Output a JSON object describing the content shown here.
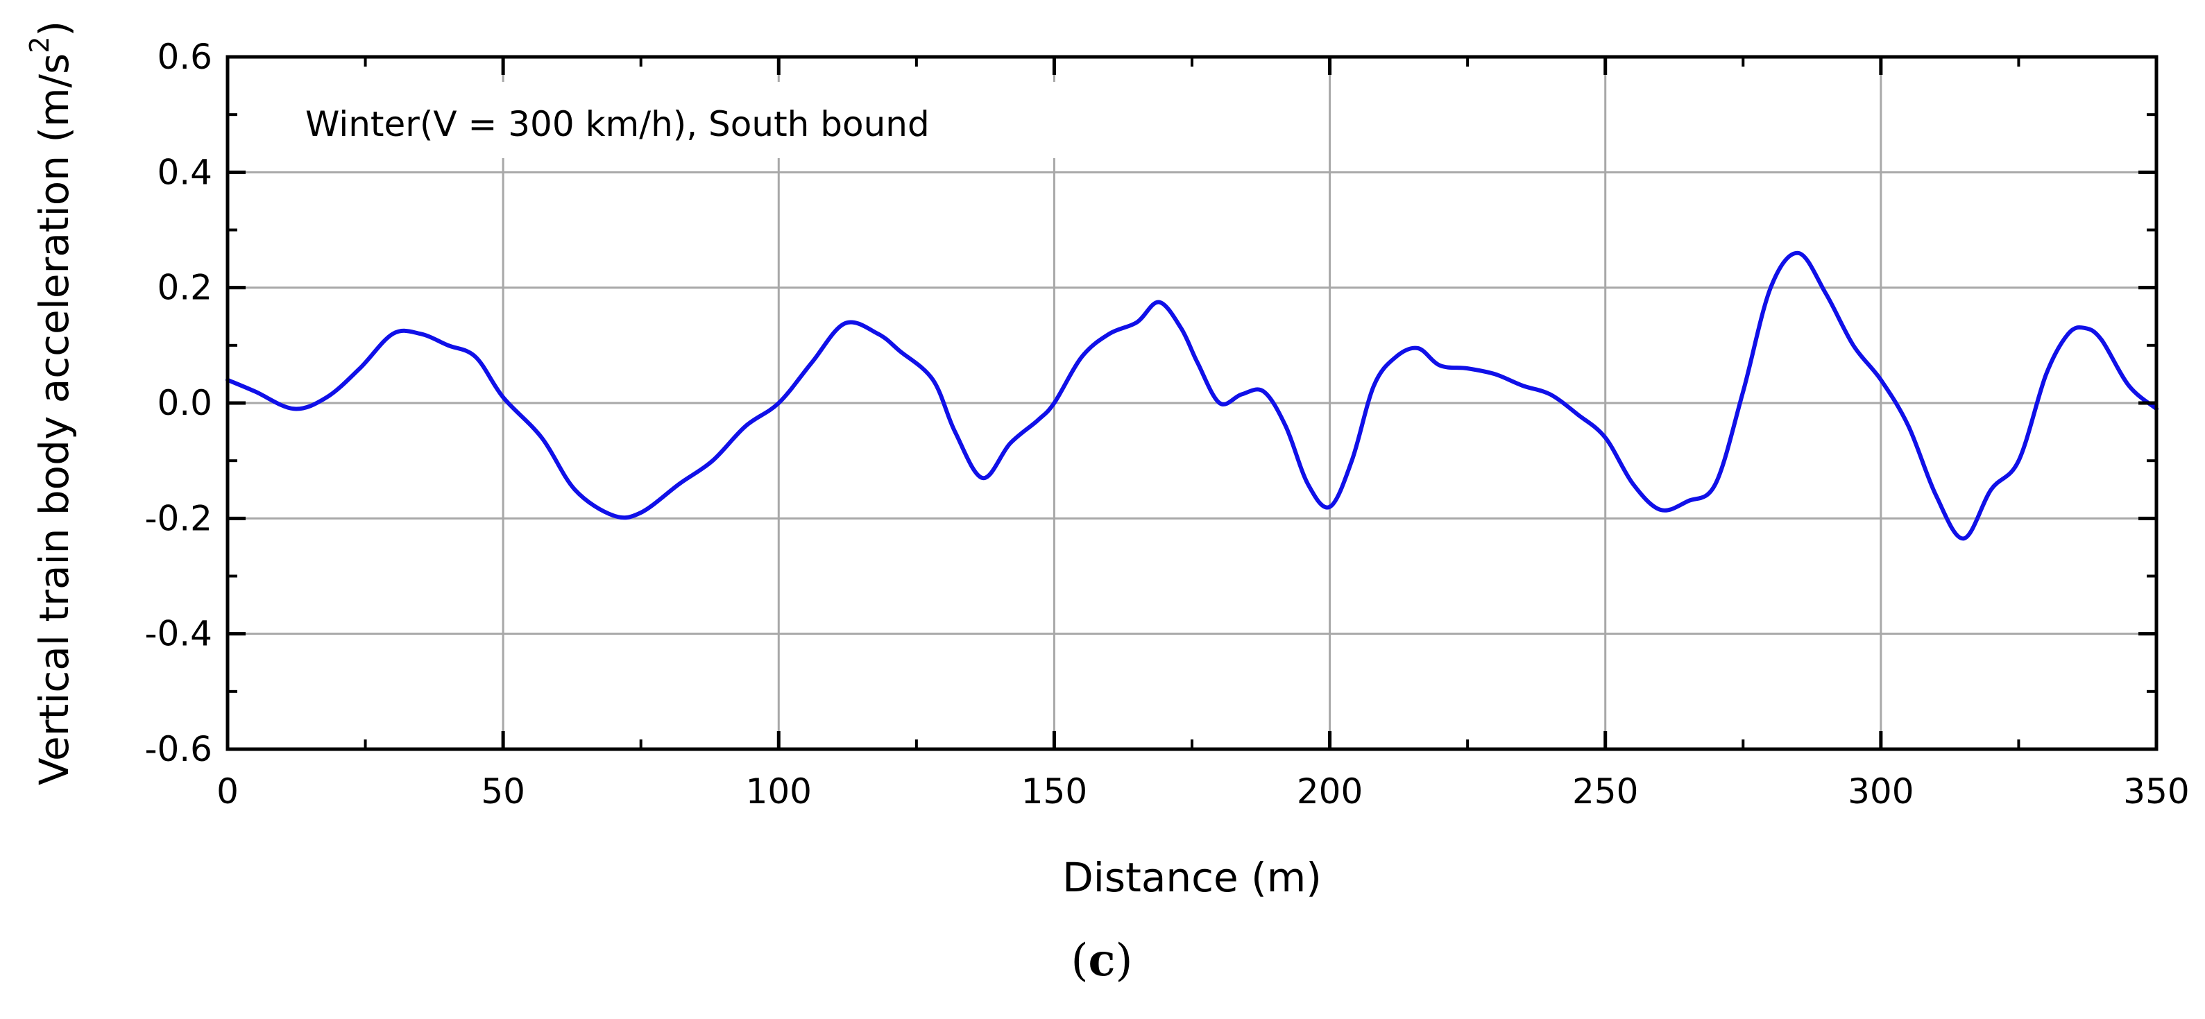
{
  "chart_data": {
    "type": "line",
    "title": "",
    "annotation": "Winter(V = 300 km/h), South bound",
    "caption_open": "(",
    "caption_letter": "c",
    "caption_close": ")",
    "xlabel": "Distance (m)",
    "ylabel": "Vertical train body acceleration (m/s",
    "ylabel_sup": "2",
    "ylabel_close": ")",
    "xlim": [
      0,
      350
    ],
    "ylim": [
      -0.6,
      0.6
    ],
    "x_ticks": [
      0,
      50,
      100,
      150,
      200,
      250,
      300,
      350
    ],
    "x_tick_labels": [
      "0",
      "50",
      "100",
      "150",
      "200",
      "250",
      "300",
      "350"
    ],
    "y_ticks": [
      -0.6,
      -0.4,
      -0.2,
      0.0,
      0.2,
      0.4,
      0.6
    ],
    "y_tick_labels": [
      "-0.6",
      "-0.4",
      "-0.2",
      "0.0",
      "0.2",
      "0.4",
      "0.6"
    ],
    "grid": true,
    "series": [
      {
        "name": "Vertical train body acceleration",
        "color": "#1010e8",
        "x": [
          0,
          5,
          12,
          18,
          24,
          30,
          35,
          40,
          45,
          50,
          57,
          63,
          70,
          75,
          82,
          88,
          94,
          100,
          106,
          112,
          118,
          122,
          128,
          132,
          137,
          142,
          147,
          150,
          155,
          160,
          165,
          169,
          173,
          176,
          180,
          184,
          188,
          192,
          196,
          200,
          204,
          208,
          212,
          216,
          220,
          225,
          230,
          235,
          240,
          245,
          250,
          255,
          260,
          265,
          270,
          275,
          280,
          285,
          290,
          295,
          300,
          305,
          310,
          315,
          320,
          325,
          330,
          334,
          337,
          340,
          345,
          350
        ],
        "y": [
          0.04,
          0.02,
          -0.01,
          0.01,
          0.06,
          0.12,
          0.12,
          0.1,
          0.08,
          0.01,
          -0.06,
          -0.15,
          -0.195,
          -0.19,
          -0.14,
          -0.1,
          -0.04,
          0.0,
          0.07,
          0.138,
          0.12,
          0.09,
          0.04,
          -0.05,
          -0.13,
          -0.07,
          -0.03,
          0.0,
          0.08,
          0.12,
          0.14,
          0.175,
          0.13,
          0.07,
          0.0,
          0.015,
          0.02,
          -0.04,
          -0.14,
          -0.18,
          -0.1,
          0.03,
          0.08,
          0.095,
          0.065,
          0.06,
          0.05,
          0.03,
          0.015,
          -0.02,
          -0.06,
          -0.14,
          -0.185,
          -0.17,
          -0.14,
          0.02,
          0.2,
          0.26,
          0.19,
          0.1,
          0.04,
          -0.04,
          -0.16,
          -0.235,
          -0.15,
          -0.1,
          0.05,
          0.12,
          0.13,
          0.11,
          0.03,
          -0.01
        ]
      }
    ]
  }
}
